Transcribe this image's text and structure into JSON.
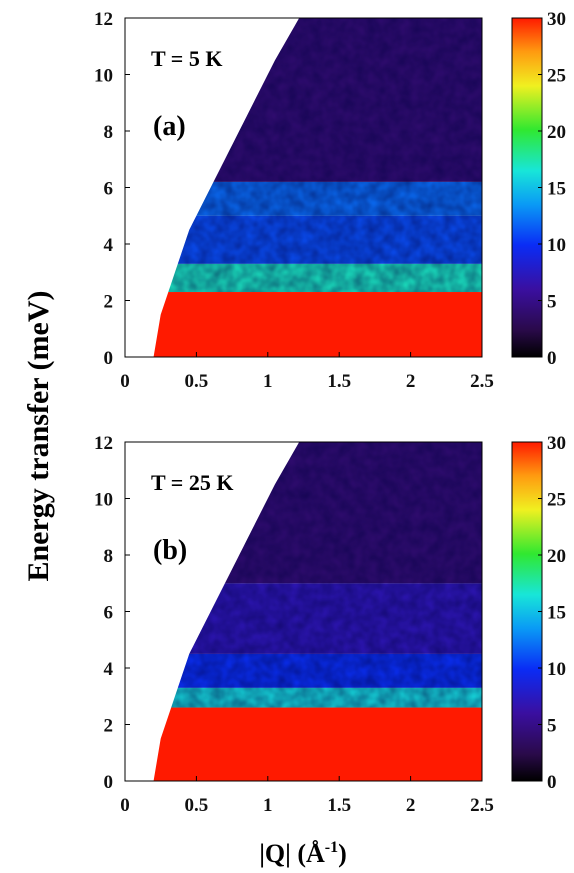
{
  "chart_data": [
    {
      "type": "heatmap",
      "panel_label": "(a)",
      "annotation": "T = 5 K",
      "xlim": [
        0,
        2.5
      ],
      "ylim": [
        0,
        12
      ],
      "x_ticks": [
        "0",
        "0.5",
        "1",
        "1.5",
        "2",
        "2.5"
      ],
      "y_ticks": [
        "0",
        "2",
        "4",
        "6",
        "8",
        "10",
        "12"
      ],
      "colorbar": {
        "min": 0,
        "max": 30,
        "ticks": [
          "0",
          "5",
          "10",
          "15",
          "20",
          "25",
          "30"
        ],
        "colormap": "jet"
      },
      "kinematic_edge_q": [
        [
          0.2,
          0
        ],
        [
          0.25,
          1.5
        ],
        [
          0.35,
          3
        ],
        [
          0.45,
          4.5
        ],
        [
          0.6,
          6
        ],
        [
          0.75,
          7.5
        ],
        [
          0.9,
          9
        ],
        [
          1.05,
          10.5
        ],
        [
          1.22,
          12
        ]
      ],
      "elastic_line": {
        "e_max": 2.3,
        "intensity": 30
      },
      "bands": [
        {
          "e_range": [
            2.3,
            3.3
          ],
          "intensity": 17
        },
        {
          "e_range": [
            3.3,
            5.0
          ],
          "intensity": 11
        },
        {
          "e_range": [
            5.0,
            6.2
          ],
          "intensity": 12
        },
        {
          "e_range": [
            6.2,
            12.0
          ],
          "intensity": 4
        }
      ]
    },
    {
      "type": "heatmap",
      "panel_label": "(b)",
      "annotation": "T = 25 K",
      "xlim": [
        0,
        2.5
      ],
      "ylim": [
        0,
        12
      ],
      "x_ticks": [
        "0",
        "0.5",
        "1",
        "1.5",
        "2",
        "2.5"
      ],
      "y_ticks": [
        "0",
        "2",
        "4",
        "6",
        "8",
        "10",
        "12"
      ],
      "colorbar": {
        "min": 0,
        "max": 30,
        "ticks": [
          "0",
          "5",
          "10",
          "15",
          "20",
          "25",
          "30"
        ],
        "colormap": "jet"
      },
      "kinematic_edge_q": [
        [
          0.2,
          0
        ],
        [
          0.25,
          1.5
        ],
        [
          0.35,
          3
        ],
        [
          0.45,
          4.5
        ],
        [
          0.6,
          6
        ],
        [
          0.75,
          7.5
        ],
        [
          0.9,
          9
        ],
        [
          1.05,
          10.5
        ],
        [
          1.22,
          12
        ]
      ],
      "elastic_line": {
        "e_max": 2.6,
        "intensity": 30
      },
      "bands": [
        {
          "e_range": [
            2.6,
            3.3
          ],
          "intensity": 16
        },
        {
          "e_range": [
            3.3,
            4.5
          ],
          "intensity": 10
        },
        {
          "e_range": [
            4.5,
            7.0
          ],
          "intensity": 7
        },
        {
          "e_range": [
            7.0,
            12.0
          ],
          "intensity": 4
        }
      ]
    }
  ],
  "axes": {
    "ylabel": "Energy transfer (meV)",
    "xlabel_prefix": "|Q| (Å",
    "xlabel_sup": "-1",
    "xlabel_suffix": ")"
  }
}
